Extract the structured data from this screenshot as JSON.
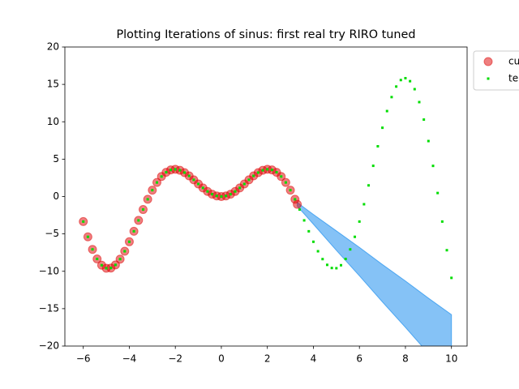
{
  "chart_data": {
    "type": "scatter",
    "title": "Plotting Iterations of sinus: first real try RIRO tuned",
    "xlim": [
      -6.8,
      10.68
    ],
    "ylim": [
      -20,
      20
    ],
    "xticks": [
      {
        "value": -6,
        "label": "−6"
      },
      {
        "value": -4,
        "label": "−4"
      },
      {
        "value": -2,
        "label": "−2"
      },
      0,
      2,
      4,
      6,
      8,
      10
    ],
    "yticks": [
      20,
      15,
      10,
      5,
      0,
      {
        "value": -5,
        "label": "−5"
      },
      {
        "value": -10,
        "label": "−10"
      },
      {
        "value": -15,
        "label": "−15"
      },
      {
        "value": -20,
        "label": "−20"
      }
    ],
    "legend": "outside-upper-right",
    "fill_between": {
      "color": "#2090ee",
      "x": [
        3.3,
        4,
        5,
        6,
        7,
        8,
        9,
        10
      ],
      "upper": [
        -0.8,
        -2.4,
        -4.6,
        -6.8,
        -9.1,
        -11.3,
        -13.6,
        -15.8
      ],
      "lower": [
        -1.3,
        -3.7,
        -7.2,
        -10.6,
        -14.1,
        -17.5,
        -21.0,
        -24.5
      ]
    },
    "series": [
      {
        "name": "cu",
        "color": "#dd0000",
        "marker": "circle",
        "x": [
          -6,
          -5.8,
          -5.6,
          -5.4,
          -5.2,
          -5,
          -4.8,
          -4.6,
          -4.4,
          -4.2,
          -4,
          -3.8,
          -3.6,
          -3.4,
          -3.2,
          -3,
          -2.8,
          -2.6,
          -2.4,
          -2.2,
          -2,
          -1.8,
          -1.6,
          -1.4,
          -1.2,
          -1,
          -0.8,
          -0.6,
          -0.4,
          -0.2,
          0,
          0.2,
          0.4,
          0.6,
          0.8,
          1,
          1.2,
          1.4,
          1.6,
          1.8,
          2,
          2.2,
          2.4,
          2.6,
          2.8,
          3,
          3.2,
          3.3
        ],
        "values": [
          -3.35,
          -5.39,
          -7.07,
          -8.35,
          -9.19,
          -9.59,
          -9.56,
          -9.14,
          -8.37,
          -7.32,
          -6.05,
          -4.65,
          -3.19,
          -1.74,
          -0.37,
          0.85,
          1.88,
          2.68,
          3.24,
          3.56,
          3.64,
          3.51,
          3.2,
          2.76,
          2.24,
          1.68,
          1.15,
          0.68,
          0.31,
          0.08,
          0,
          0.08,
          0.31,
          0.68,
          1.15,
          1.68,
          2.24,
          2.76,
          3.2,
          3.51,
          3.64,
          3.56,
          3.24,
          2.68,
          1.88,
          0.85,
          -0.37,
          -1.04
        ]
      },
      {
        "name": "te",
        "color": "#00dd00",
        "marker": "point",
        "x": [
          -6,
          -5.8,
          -5.6,
          -5.4,
          -5.2,
          -5,
          -4.8,
          -4.6,
          -4.4,
          -4.2,
          -4,
          -3.8,
          -3.6,
          -3.4,
          -3.2,
          -3,
          -2.8,
          -2.6,
          -2.4,
          -2.2,
          -2,
          -1.8,
          -1.6,
          -1.4,
          -1.2,
          -1,
          -0.8,
          -0.6,
          -0.4,
          -0.2,
          0,
          0.2,
          0.4,
          0.6,
          0.8,
          1,
          1.2,
          1.4,
          1.6,
          1.8,
          2,
          2.2,
          2.4,
          2.6,
          2.8,
          3,
          3.2,
          3.4,
          3.6,
          3.8,
          4,
          4.2,
          4.4,
          4.6,
          4.8,
          5,
          5.2,
          5.4,
          5.6,
          5.8,
          6,
          6.2,
          6.4,
          6.6,
          6.8,
          7,
          7.2,
          7.4,
          7.6,
          7.8,
          8,
          8.2,
          8.4,
          8.6,
          8.8,
          9,
          9.2,
          9.4,
          9.6,
          9.8,
          10
        ],
        "values": [
          -3.35,
          -5.39,
          -7.07,
          -8.35,
          -9.19,
          -9.59,
          -9.56,
          -9.14,
          -8.37,
          -7.32,
          -6.05,
          -4.65,
          -3.19,
          -1.74,
          -0.37,
          0.85,
          1.88,
          2.68,
          3.24,
          3.56,
          3.64,
          3.51,
          3.2,
          2.76,
          2.24,
          1.68,
          1.15,
          0.68,
          0.31,
          0.08,
          0,
          0.08,
          0.31,
          0.68,
          1.15,
          1.68,
          2.24,
          2.76,
          3.2,
          3.51,
          3.64,
          3.56,
          3.24,
          2.68,
          1.88,
          0.85,
          -0.37,
          -1.74,
          -3.19,
          -4.65,
          -6.05,
          -7.32,
          -8.37,
          -9.14,
          -9.56,
          -9.59,
          -9.19,
          -8.35,
          -7.07,
          -5.39,
          -3.35,
          -1.03,
          1.49,
          4.11,
          6.72,
          9.2,
          11.43,
          13.3,
          14.71,
          15.58,
          15.83,
          15.43,
          14.36,
          12.63,
          10.29,
          7.42,
          4.1,
          0.47,
          -3.35,
          -7.18,
          -10.88
        ]
      }
    ]
  }
}
